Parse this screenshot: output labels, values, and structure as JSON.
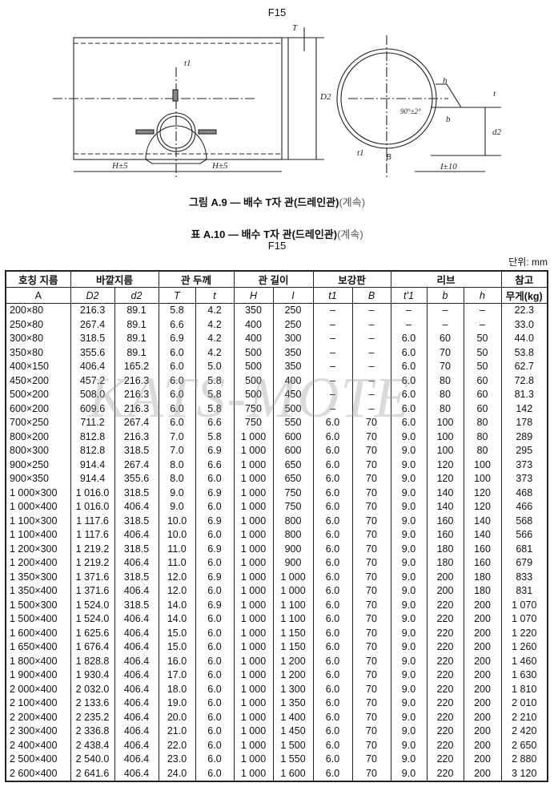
{
  "top_label": "F15",
  "figure": {
    "labels": {
      "T": "T",
      "t1": "t1",
      "D2": "D2",
      "H_left": "H±5",
      "H_right": "H±5",
      "h": "h",
      "angle": "90°±2°",
      "t": "t",
      "b": "b",
      "d2": "d2",
      "t1_right": "t1",
      "B": "B",
      "I": "I±10"
    }
  },
  "figure_caption": {
    "main": "그림 A.9 — 배수 T자 관(드레인관)",
    "cont": "(계속)"
  },
  "table_caption": {
    "main": "표 A.10 — 배수 T자 관(드레인관)",
    "cont": "(계속)"
  },
  "table_sub": "F15",
  "unit": "단위: mm",
  "watermark": "KATS-MOTE",
  "table": {
    "group_headers": [
      "호칭 지름",
      "바깥지름",
      "관 두께",
      "관 길이",
      "보강판",
      "리브",
      "참고"
    ],
    "sub_headers": [
      "A",
      "D2",
      "d2",
      "T",
      "t",
      "H",
      "I",
      "t1",
      "B",
      "t'1",
      "b",
      "h",
      "무게(kg)"
    ],
    "rows": [
      [
        "200×80",
        "216.3",
        "89.1",
        "5.8",
        "4.2",
        "350",
        "250",
        "–",
        "–",
        "–",
        "–",
        "–",
        "22.3"
      ],
      [
        "250×80",
        "267.4",
        "89.1",
        "6.6",
        "4.2",
        "400",
        "250",
        "–",
        "–",
        "–",
        "–",
        "–",
        "33.0"
      ],
      [
        "300×80",
        "318.5",
        "89.1",
        "6.9",
        "4.2",
        "400",
        "300",
        "–",
        "–",
        "6.0",
        "60",
        "50",
        "44.0"
      ],
      [
        "350×80",
        "355.6",
        "89.1",
        "6.0",
        "4.2",
        "500",
        "350",
        "–",
        "–",
        "6.0",
        "70",
        "50",
        "53.8"
      ],
      [
        "400×150",
        "406.4",
        "165.2",
        "6.0",
        "5.0",
        "500",
        "350",
        "–",
        "–",
        "6.0",
        "70",
        "50",
        "62.7"
      ],
      [
        "450×200",
        "457.2",
        "216.3",
        "6.0",
        "5.8",
        "500",
        "400",
        "–",
        "–",
        "6.0",
        "80",
        "60",
        "72.8"
      ],
      [
        "500×200",
        "508.0",
        "216.3",
        "6.0",
        "5.8",
        "500",
        "450",
        "–",
        "–",
        "6.0",
        "80",
        "60",
        "81.3"
      ],
      [
        "600×200",
        "609.6",
        "216.3",
        "6.0",
        "5.8",
        "750",
        "500",
        "–",
        "–",
        "6.0",
        "80",
        "60",
        "142"
      ],
      [
        "700×250",
        "711.2",
        "267.4",
        "6.0",
        "6.6",
        "750",
        "550",
        "6.0",
        "70",
        "6.0",
        "100",
        "80",
        "178"
      ],
      [
        "800×200",
        "812.8",
        "216.3",
        "7.0",
        "5.8",
        "1 000",
        "600",
        "6.0",
        "70",
        "9.0",
        "100",
        "80",
        "289"
      ],
      [
        "800×300",
        "812.8",
        "318.5",
        "7.0",
        "6.9",
        "1 000",
        "600",
        "6.0",
        "70",
        "9.0",
        "100",
        "80",
        "295"
      ],
      [
        "900×250",
        "914.4",
        "267.4",
        "8.0",
        "6.6",
        "1 000",
        "650",
        "6.0",
        "70",
        "9.0",
        "120",
        "100",
        "373"
      ],
      [
        "900×350",
        "914.4",
        "355.6",
        "8.0",
        "6.0",
        "1 000",
        "650",
        "6.0",
        "70",
        "9.0",
        "120",
        "100",
        "373"
      ],
      [
        "1 000×300",
        "1 016.0",
        "318.5",
        "9.0",
        "6.9",
        "1 000",
        "750",
        "6.0",
        "70",
        "9.0",
        "140",
        "120",
        "468"
      ],
      [
        "1 000×400",
        "1 016.0",
        "406.4",
        "9.0",
        "6.0",
        "1 000",
        "750",
        "6.0",
        "70",
        "9.0",
        "140",
        "120",
        "466"
      ],
      [
        "1 100×300",
        "1 117.6",
        "318.5",
        "10.0",
        "6.9",
        "1 000",
        "800",
        "6.0",
        "70",
        "9.0",
        "160",
        "140",
        "568"
      ],
      [
        "1 100×400",
        "1 117.6",
        "406.4",
        "10.0",
        "6.0",
        "1 000",
        "800",
        "6.0",
        "70",
        "9.0",
        "160",
        "140",
        "566"
      ],
      [
        "1 200×300",
        "1 219.2",
        "318.5",
        "11.0",
        "6.9",
        "1 000",
        "900",
        "6.0",
        "70",
        "9.0",
        "180",
        "160",
        "681"
      ],
      [
        "1 200×400",
        "1 219.2",
        "406.4",
        "11.0",
        "6.0",
        "1 000",
        "900",
        "6.0",
        "70",
        "9.0",
        "180",
        "160",
        "679"
      ],
      [
        "1 350×300",
        "1 371.6",
        "318.5",
        "12.0",
        "6.9",
        "1 000",
        "1 000",
        "6.0",
        "70",
        "9.0",
        "200",
        "180",
        "833"
      ],
      [
        "1 350×400",
        "1 371.6",
        "406.4",
        "12.0",
        "6.0",
        "1 000",
        "1 000",
        "6.0",
        "70",
        "9.0",
        "200",
        "180",
        "831"
      ],
      [
        "1 500×300",
        "1 524.0",
        "318.5",
        "14.0",
        "6.9",
        "1 000",
        "1 100",
        "6.0",
        "70",
        "9.0",
        "220",
        "200",
        "1 070"
      ],
      [
        "1 500×400",
        "1 524.0",
        "406.4",
        "14.0",
        "6.0",
        "1 000",
        "1 100",
        "6.0",
        "70",
        "9.0",
        "220",
        "200",
        "1 070"
      ],
      [
        "1 600×400",
        "1 625.6",
        "406.4",
        "15.0",
        "6.0",
        "1 000",
        "1 150",
        "6.0",
        "70",
        "9.0",
        "220",
        "200",
        "1 220"
      ],
      [
        "1 650×400",
        "1 676.4",
        "406.4",
        "15.0",
        "6.0",
        "1 000",
        "1 150",
        "6.0",
        "70",
        "9.0",
        "220",
        "200",
        "1 260"
      ],
      [
        "1 800×400",
        "1 828.8",
        "406.4",
        "16.0",
        "6.0",
        "1 000",
        "1 200",
        "6.0",
        "70",
        "9.0",
        "220",
        "200",
        "1 460"
      ],
      [
        "1 900×400",
        "1 930.4",
        "406.4",
        "17.0",
        "6.0",
        "1 000",
        "1 200",
        "6.0",
        "70",
        "9.0",
        "220",
        "200",
        "1 630"
      ],
      [
        "2 000×400",
        "2 032.0",
        "406.4",
        "18.0",
        "6.0",
        "1 000",
        "1 300",
        "6.0",
        "70",
        "9.0",
        "220",
        "200",
        "1 810"
      ],
      [
        "2 100×400",
        "2 133.6",
        "406.4",
        "19.0",
        "6.0",
        "1 000",
        "1 350",
        "6.0",
        "70",
        "9.0",
        "220",
        "200",
        "2 010"
      ],
      [
        "2 200×400",
        "2 235.2",
        "406.4",
        "20.0",
        "6.0",
        "1 000",
        "1 400",
        "6.0",
        "70",
        "9.0",
        "220",
        "200",
        "2 210"
      ],
      [
        "2 300×400",
        "2 336.8",
        "406.4",
        "21.0",
        "6.0",
        "1 000",
        "1 450",
        "6.0",
        "70",
        "9.0",
        "220",
        "200",
        "2 420"
      ],
      [
        "2 400×400",
        "2 438.4",
        "406.4",
        "22.0",
        "6.0",
        "1 000",
        "1 500",
        "6.0",
        "70",
        "9.0",
        "220",
        "200",
        "2 650"
      ],
      [
        "2 500×400",
        "2 540.0",
        "406.4",
        "23.0",
        "6.0",
        "1 000",
        "1 550",
        "6.0",
        "70",
        "9.0",
        "220",
        "200",
        "2 880"
      ],
      [
        "2 600×400",
        "2 641.6",
        "406.4",
        "24.0",
        "6.0",
        "1 000",
        "1 600",
        "6.0",
        "70",
        "9.0",
        "220",
        "200",
        "3 120"
      ]
    ]
  }
}
